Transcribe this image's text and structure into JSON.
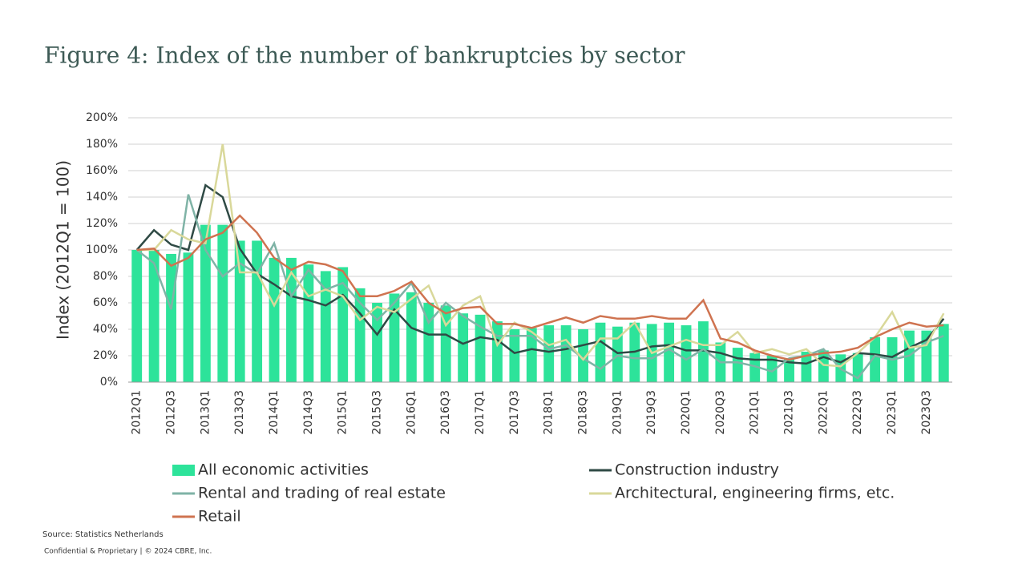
{
  "chart_data": {
    "type": "bar",
    "title": "Figure 4: Index of the number of bankruptcies by sector",
    "y_label": "Index (2012Q1 = 100)",
    "source": "Source: Statistics Netherlands",
    "footer": "Confidential & Proprietary | © 2024 CBRE, Inc.",
    "grid": true,
    "ylim": [
      0,
      200
    ],
    "yticks": [
      {
        "value": 0,
        "label": "0%"
      },
      {
        "value": 20,
        "label": "20%"
      },
      {
        "value": 40,
        "label": "40%"
      },
      {
        "value": 60,
        "label": "60%"
      },
      {
        "value": 80,
        "label": "80%"
      },
      {
        "value": 100,
        "label": "100%"
      },
      {
        "value": 120,
        "label": "120%"
      },
      {
        "value": 140,
        "label": "140%"
      },
      {
        "value": 160,
        "label": "160%"
      },
      {
        "value": 180,
        "label": "180%"
      },
      {
        "value": 200,
        "label": "200%"
      }
    ],
    "categories": [
      "2012Q1",
      null,
      "2012Q3",
      null,
      "2013Q1",
      null,
      "2013Q3",
      null,
      "2014Q1",
      null,
      "2014Q3",
      null,
      "2015Q1",
      null,
      "2015Q3",
      null,
      "2016Q1",
      null,
      "2016Q3",
      null,
      "2017Q1",
      null,
      "2017Q3",
      null,
      "2018Q1",
      null,
      "2018Q3",
      null,
      "2019Q1",
      null,
      "2019Q3",
      null,
      "2020Q1",
      null,
      "2020Q3",
      null,
      "2021Q1",
      null,
      "2021Q3",
      null,
      "2022Q1",
      null,
      "2022Q3",
      null,
      "2023Q1",
      null,
      "2023Q3",
      null
    ],
    "series": [
      {
        "name": "All economic activities",
        "type": "bar",
        "color": "#2de39a",
        "values": [
          100,
          100,
          97,
          98,
          119,
          119,
          107,
          107,
          94,
          94,
          89,
          84,
          87,
          71,
          60,
          67,
          68,
          60,
          58,
          52,
          51,
          46,
          40,
          41,
          43,
          43,
          40,
          45,
          42,
          45,
          44,
          45,
          43,
          46,
          30,
          26,
          22,
          20,
          18,
          23,
          24,
          21,
          22,
          34,
          34,
          39,
          39,
          44
        ]
      },
      {
        "name": "Construction industry",
        "type": "line",
        "color": "#2f4a45",
        "values": [
          100,
          115,
          104,
          100,
          149,
          140,
          101,
          82,
          74,
          65,
          62,
          58,
          66,
          52,
          36,
          55,
          41,
          36,
          36,
          29,
          34,
          32,
          22,
          25,
          23,
          25,
          28,
          31,
          22,
          23,
          27,
          28,
          24,
          24,
          22,
          18,
          17,
          17,
          15,
          14,
          19,
          15,
          22,
          21,
          19,
          26,
          32,
          48
        ]
      },
      {
        "name": "Rental and trading of real estate",
        "type": "line",
        "color": "#7fb3a6",
        "values": [
          100,
          90,
          55,
          142,
          100,
          80,
          90,
          82,
          105,
          65,
          85,
          70,
          75,
          60,
          47,
          60,
          75,
          45,
          60,
          50,
          42,
          35,
          35,
          35,
          25,
          28,
          18,
          10,
          20,
          18,
          18,
          25,
          17,
          25,
          15,
          15,
          12,
          8,
          18,
          20,
          25,
          10,
          3,
          20,
          17,
          20,
          30,
          35
        ]
      },
      {
        "name": "Architectural, engineering firms, etc.",
        "type": "line",
        "color": "#d9d89a",
        "values": [
          100,
          100,
          115,
          108,
          105,
          180,
          83,
          83,
          58,
          83,
          65,
          70,
          65,
          47,
          57,
          53,
          63,
          73,
          43,
          58,
          65,
          28,
          45,
          38,
          28,
          32,
          17,
          33,
          33,
          45,
          22,
          27,
          32,
          28,
          28,
          38,
          22,
          25,
          21,
          25,
          13,
          12,
          22,
          34,
          53,
          26,
          28,
          52
        ]
      },
      {
        "name": "Retail",
        "type": "line",
        "color": "#cf7350",
        "values": [
          100,
          101,
          88,
          94,
          108,
          113,
          126,
          113,
          94,
          85,
          91,
          89,
          84,
          65,
          65,
          69,
          76,
          60,
          52,
          56,
          57,
          44,
          44,
          41,
          45,
          49,
          45,
          50,
          48,
          48,
          50,
          48,
          48,
          62,
          33,
          30,
          24,
          20,
          17,
          20,
          22,
          23,
          26,
          34,
          40,
          45,
          42,
          43
        ]
      }
    ]
  }
}
